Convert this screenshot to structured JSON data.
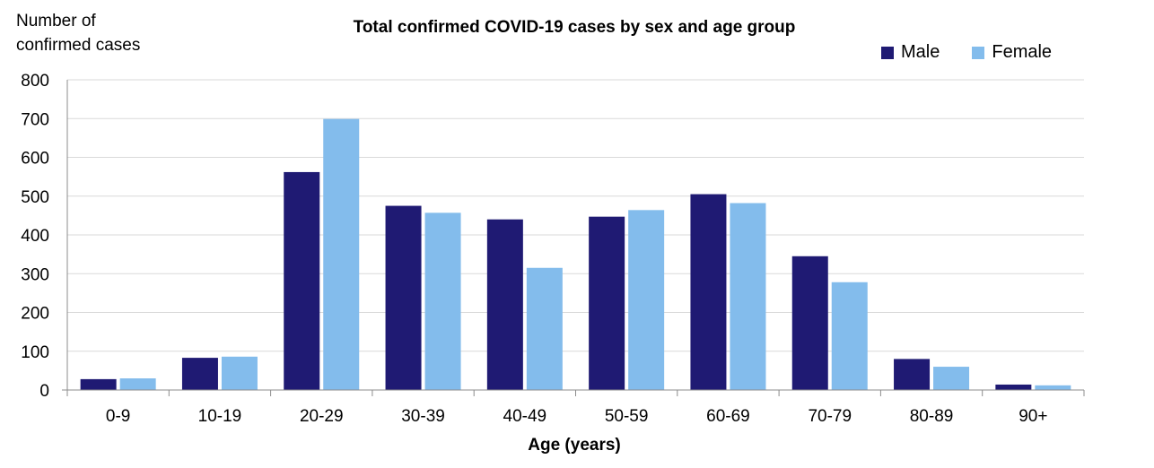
{
  "chart_data": {
    "type": "bar",
    "title": "Total confirmed COVID-19 cases by sex and age group",
    "ylabel": "Number of confirmed cases",
    "xlabel": "Age (years)",
    "categories": [
      "0-9",
      "10-19",
      "20-29",
      "30-39",
      "40-49",
      "50-59",
      "60-69",
      "70-79",
      "80-89",
      "90+"
    ],
    "series": [
      {
        "name": "Male",
        "color": "#1f1a73",
        "values": [
          28,
          83,
          562,
          475,
          440,
          447,
          505,
          345,
          80,
          14
        ]
      },
      {
        "name": "Female",
        "color": "#83bcec",
        "values": [
          30,
          86,
          699,
          457,
          315,
          464,
          482,
          278,
          60,
          12
        ]
      }
    ],
    "ylim": [
      0,
      800
    ],
    "yticks": [
      0,
      100,
      200,
      300,
      400,
      500,
      600,
      700,
      800
    ],
    "grid": true,
    "legend_position": "top-right"
  }
}
